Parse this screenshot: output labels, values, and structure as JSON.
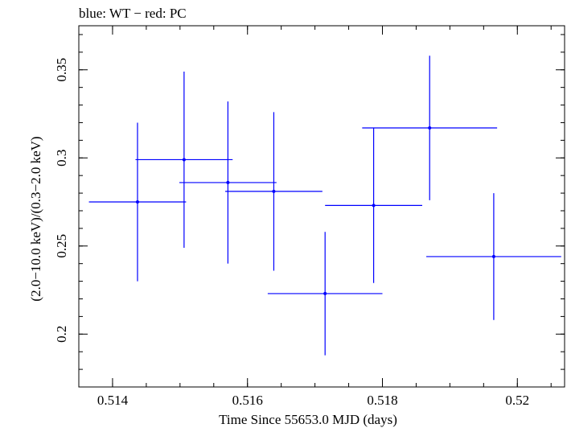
{
  "chart_data": {
    "type": "scatter",
    "title": "blue: WT − red: PC",
    "xlabel": "Time Since 55653.0 MJD (days)",
    "ylabel": "(2.0−10.0 keV)/(0.3−2.0 keV)",
    "xlim": [
      0.5135,
      0.5207
    ],
    "ylim": [
      0.17,
      0.375
    ],
    "x_ticks": [
      {
        "value": 0.514,
        "label": "0.514"
      },
      {
        "value": 0.516,
        "label": "0.516"
      },
      {
        "value": 0.518,
        "label": "0.518"
      },
      {
        "value": 0.52,
        "label": "0.52"
      }
    ],
    "y_ticks": [
      {
        "value": 0.2,
        "label": "0.2"
      },
      {
        "value": 0.25,
        "label": "0.25"
      },
      {
        "value": 0.3,
        "label": "0.3"
      },
      {
        "value": 0.35,
        "label": "0.35"
      }
    ],
    "x_minor_step": 0.0005,
    "y_minor_step": 0.01,
    "grid": false,
    "series": [
      {
        "color": "#0000ff",
        "points": [
          {
            "x": 0.51437,
            "y": 0.275,
            "xerr_low": 0.00072,
            "xerr_high": 0.00072,
            "yerr_low": 0.045,
            "yerr_high": 0.045
          },
          {
            "x": 0.51506,
            "y": 0.299,
            "xerr_low": 0.00072,
            "xerr_high": 0.00072,
            "yerr_low": 0.05,
            "yerr_high": 0.05
          },
          {
            "x": 0.51571,
            "y": 0.286,
            "xerr_low": 0.00072,
            "xerr_high": 0.00072,
            "yerr_low": 0.046,
            "yerr_high": 0.046
          },
          {
            "x": 0.51639,
            "y": 0.281,
            "xerr_low": 0.00072,
            "xerr_high": 0.00072,
            "yerr_low": 0.045,
            "yerr_high": 0.045
          },
          {
            "x": 0.51715,
            "y": 0.223,
            "xerr_low": 0.00085,
            "xerr_high": 0.00085,
            "yerr_low": 0.035,
            "yerr_high": 0.035
          },
          {
            "x": 0.51787,
            "y": 0.273,
            "xerr_low": 0.00072,
            "xerr_high": 0.00072,
            "yerr_low": 0.044,
            "yerr_high": 0.044
          },
          {
            "x": 0.5187,
            "y": 0.317,
            "xerr_low": 0.001,
            "xerr_high": 0.001,
            "yerr_low": 0.041,
            "yerr_high": 0.041
          },
          {
            "x": 0.51965,
            "y": 0.244,
            "xerr_low": 0.001,
            "xerr_high": 0.001,
            "yerr_low": 0.036,
            "yerr_high": 0.036
          }
        ]
      }
    ]
  }
}
